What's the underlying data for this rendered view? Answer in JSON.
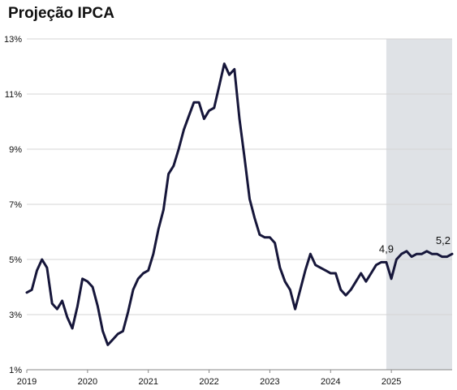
{
  "chart_data": {
    "type": "line",
    "title": "Projeção IPCA",
    "xlabel": "",
    "ylabel": "",
    "x_ticks": [
      "2019",
      "2020",
      "2021",
      "2022",
      "2023",
      "2024",
      "2025"
    ],
    "y_ticks": [
      "1%",
      "3%",
      "5%",
      "7%",
      "9%",
      "11%",
      "13%"
    ],
    "ylim": [
      1,
      13
    ],
    "xlim": [
      2019.0,
      2026.0
    ],
    "grid": "horizontal",
    "projection_shaded_from": 2024.917,
    "colors": {
      "line": "#16163a",
      "shade": "#dfe2e6",
      "grid": "#d4d4d4"
    },
    "series": [
      {
        "x": [
          2019.0,
          2019.083,
          2019.167,
          2019.25,
          2019.333,
          2019.417,
          2019.5,
          2019.583,
          2019.667,
          2019.75,
          2019.833,
          2019.917,
          2020.0,
          2020.083,
          2020.167,
          2020.25,
          2020.333,
          2020.417,
          2020.5,
          2020.583,
          2020.667,
          2020.75,
          2020.833,
          2020.917,
          2021.0,
          2021.083,
          2021.167,
          2021.25,
          2021.333,
          2021.417,
          2021.5,
          2021.583,
          2021.667,
          2021.75,
          2021.833,
          2021.917,
          2022.0,
          2022.083,
          2022.167,
          2022.25,
          2022.333,
          2022.417,
          2022.5,
          2022.583,
          2022.667,
          2022.75,
          2022.833,
          2022.917,
          2023.0,
          2023.083,
          2023.167,
          2023.25,
          2023.333,
          2023.417,
          2023.5,
          2023.583,
          2023.667,
          2023.75,
          2023.833,
          2023.917,
          2024.0,
          2024.083,
          2024.167,
          2024.25,
          2024.333,
          2024.417,
          2024.5,
          2024.583,
          2024.667,
          2024.75,
          2024.833,
          2024.917,
          2025.0,
          2025.083,
          2025.167,
          2025.25,
          2025.333,
          2025.417,
          2025.5,
          2025.583,
          2025.667,
          2025.75,
          2025.833,
          2025.917,
          2026.0
        ],
        "values": [
          3.8,
          3.9,
          4.6,
          5.0,
          4.7,
          3.4,
          3.2,
          3.5,
          2.9,
          2.5,
          3.3,
          4.3,
          4.2,
          4.0,
          3.3,
          2.4,
          1.9,
          2.1,
          2.3,
          2.4,
          3.1,
          3.9,
          4.3,
          4.5,
          4.6,
          5.2,
          6.1,
          6.8,
          8.1,
          8.4,
          9.0,
          9.7,
          10.2,
          10.7,
          10.7,
          10.1,
          10.4,
          10.5,
          11.3,
          12.1,
          11.7,
          11.9,
          10.1,
          8.7,
          7.2,
          6.5,
          5.9,
          5.8,
          5.8,
          5.6,
          4.7,
          4.2,
          3.9,
          3.2,
          3.9,
          4.6,
          5.2,
          4.8,
          4.7,
          4.6,
          4.5,
          4.5,
          3.9,
          3.7,
          3.9,
          4.2,
          4.5,
          4.2,
          4.5,
          4.8,
          4.9,
          4.9,
          4.3,
          5.0,
          5.2,
          5.3,
          5.1,
          5.2,
          5.2,
          5.3,
          5.2,
          5.2,
          5.1,
          5.1,
          5.2
        ]
      }
    ],
    "annotations": [
      {
        "text": "4,9",
        "x": 2024.917,
        "y": 4.9
      },
      {
        "text": "5,2",
        "x": 2026.0,
        "y": 5.2
      }
    ]
  }
}
